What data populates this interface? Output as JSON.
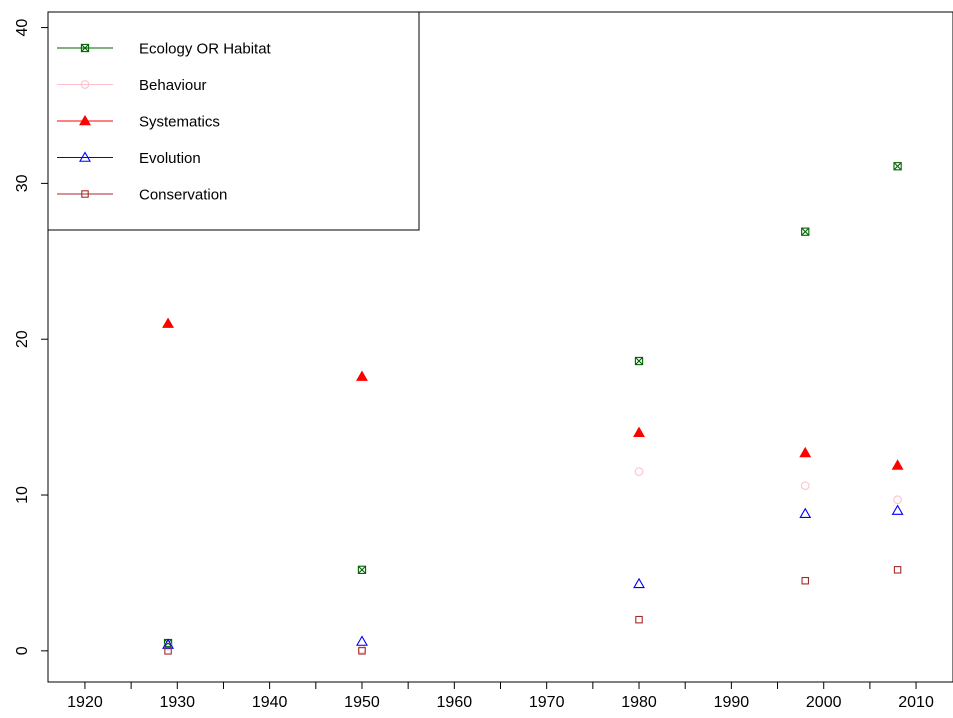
{
  "chart_data": {
    "type": "scatter",
    "title": "",
    "xlabel": "",
    "ylabel": "",
    "xlim": [
      1916,
      2014
    ],
    "ylim": [
      -2,
      41
    ],
    "x_ticks": [
      1920,
      1930,
      1940,
      1950,
      1960,
      1970,
      1980,
      1990,
      2000,
      2010
    ],
    "x_minor_ticks": [
      1925,
      1935,
      1945,
      1955,
      1965,
      1975,
      1985,
      1995,
      2005
    ],
    "y_ticks": [
      0,
      10,
      20,
      30,
      40
    ],
    "grid": false,
    "legend": {
      "placement": "top-left",
      "boxed": true
    },
    "series": [
      {
        "name": "Ecology OR Habitat",
        "color": "#006400",
        "marker": "square-cross",
        "points": [
          [
            1929,
            0.5
          ],
          [
            1950,
            5.2
          ],
          [
            1980,
            18.6
          ],
          [
            1998,
            26.9
          ],
          [
            2008,
            31.1
          ]
        ]
      },
      {
        "name": "Behaviour",
        "color": "#ffc0cb",
        "marker": "circle-open",
        "points": [
          [
            1929,
            0.3
          ],
          [
            1950,
            0.1
          ],
          [
            1980,
            11.5
          ],
          [
            1998,
            10.6
          ],
          [
            2008,
            9.7
          ]
        ]
      },
      {
        "name": "Systematics",
        "color": "#ff0000",
        "marker": "triangle-filled",
        "points": [
          [
            1929,
            21.0
          ],
          [
            1950,
            17.6
          ],
          [
            1980,
            14.0
          ],
          [
            1998,
            12.7
          ],
          [
            2008,
            11.9
          ]
        ]
      },
      {
        "name": "Evolution",
        "color": "#0000ff",
        "marker": "triangle-open",
        "points": [
          [
            1929,
            0.4
          ],
          [
            1950,
            0.6
          ],
          [
            1980,
            4.3
          ],
          [
            1998,
            8.8
          ],
          [
            2008,
            9.0
          ]
        ]
      },
      {
        "name": "Conservation",
        "color": "#a52a2a",
        "marker": "square-open",
        "points": [
          [
            1929,
            0.0
          ],
          [
            1950,
            0.0
          ],
          [
            1980,
            2.0
          ],
          [
            1998,
            4.5
          ],
          [
            2008,
            5.2
          ]
        ]
      }
    ]
  }
}
